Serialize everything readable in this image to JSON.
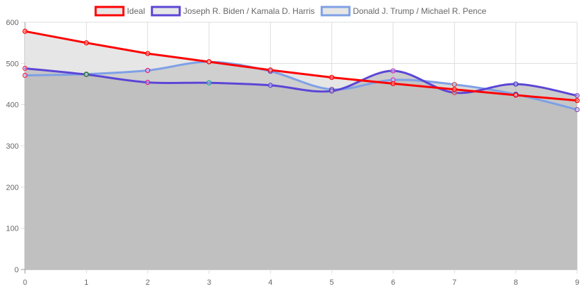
{
  "chart_data": {
    "type": "line",
    "x": [
      0,
      1,
      2,
      3,
      4,
      5,
      6,
      7,
      8,
      9
    ],
    "xlim": [
      0,
      9
    ],
    "ylim": [
      0,
      600
    ],
    "y_ticks": [
      0,
      100,
      200,
      300,
      400,
      500,
      600
    ],
    "grid": true,
    "legend_position": "top",
    "series": [
      {
        "name": "Ideal",
        "color": "#ff0000",
        "line_style": "straight",
        "values": [
          578,
          550,
          524,
          504,
          484,
          466,
          451,
          437,
          423,
          410
        ]
      },
      {
        "name": "Joseph R. Biden / Kamala D. Harris",
        "color": "#5b45d6",
        "line_style": "smooth",
        "values": [
          488,
          473,
          454,
          453,
          447,
          433,
          482,
          429,
          450,
          422
        ]
      },
      {
        "name": "Donald J. Trump / Michael R. Pence",
        "color": "#7ea0e6",
        "line_style": "smooth",
        "values": [
          471,
          474,
          483,
          504,
          481,
          437,
          460,
          449,
          425,
          388
        ]
      }
    ],
    "point_colors": [
      "#e8315a",
      "#2e7d32",
      "#d81b8c",
      "#19a39a",
      "#5b45d6",
      "#6a3fa8",
      "#c83cc8",
      "#c85050",
      "#3d3db8",
      "#8c4db8"
    ],
    "fill_color": "#bbbbbb",
    "ideal_fill_color": "#e6e6e6"
  }
}
